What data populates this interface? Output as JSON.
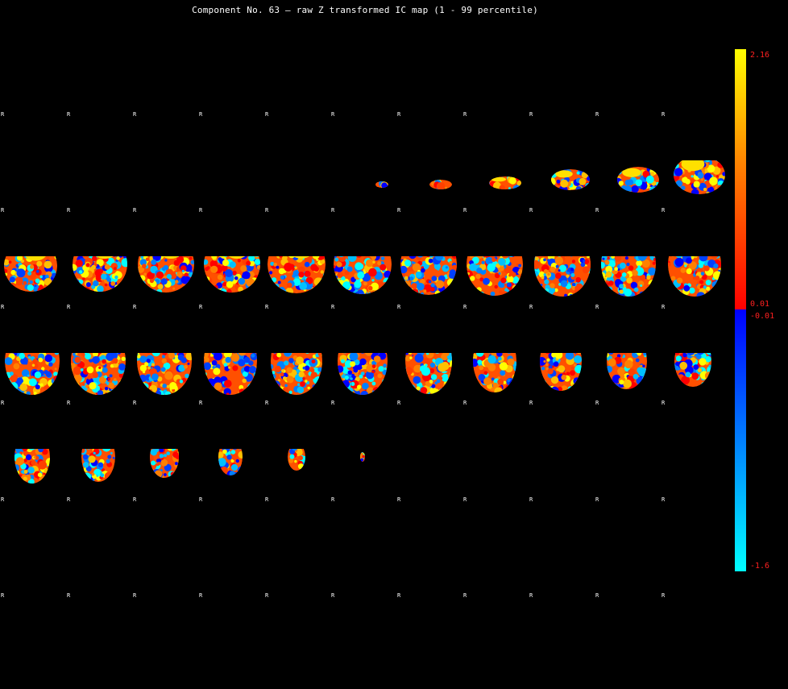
{
  "title": "Component No. 63 – raw Z transformed IC map (1 - 99 percentile)",
  "orientation_marker": "R",
  "grid": {
    "columns": 11,
    "rows": 6,
    "slices_with_signal": 40
  },
  "colorbar": {
    "max_label": "2.16",
    "pos_min_label": "0.01",
    "neg_min_label": "-0.01",
    "neg_max_label": "-1.6",
    "positive_stops": [
      "#ffff00",
      "#ff8000",
      "#ff0000"
    ],
    "negative_stops": [
      "#0000ff",
      "#0080ff",
      "#00ffff"
    ]
  },
  "colors": {
    "background": "#000000",
    "text": "#ffffff",
    "colorbar_label": "#ff2020"
  }
}
